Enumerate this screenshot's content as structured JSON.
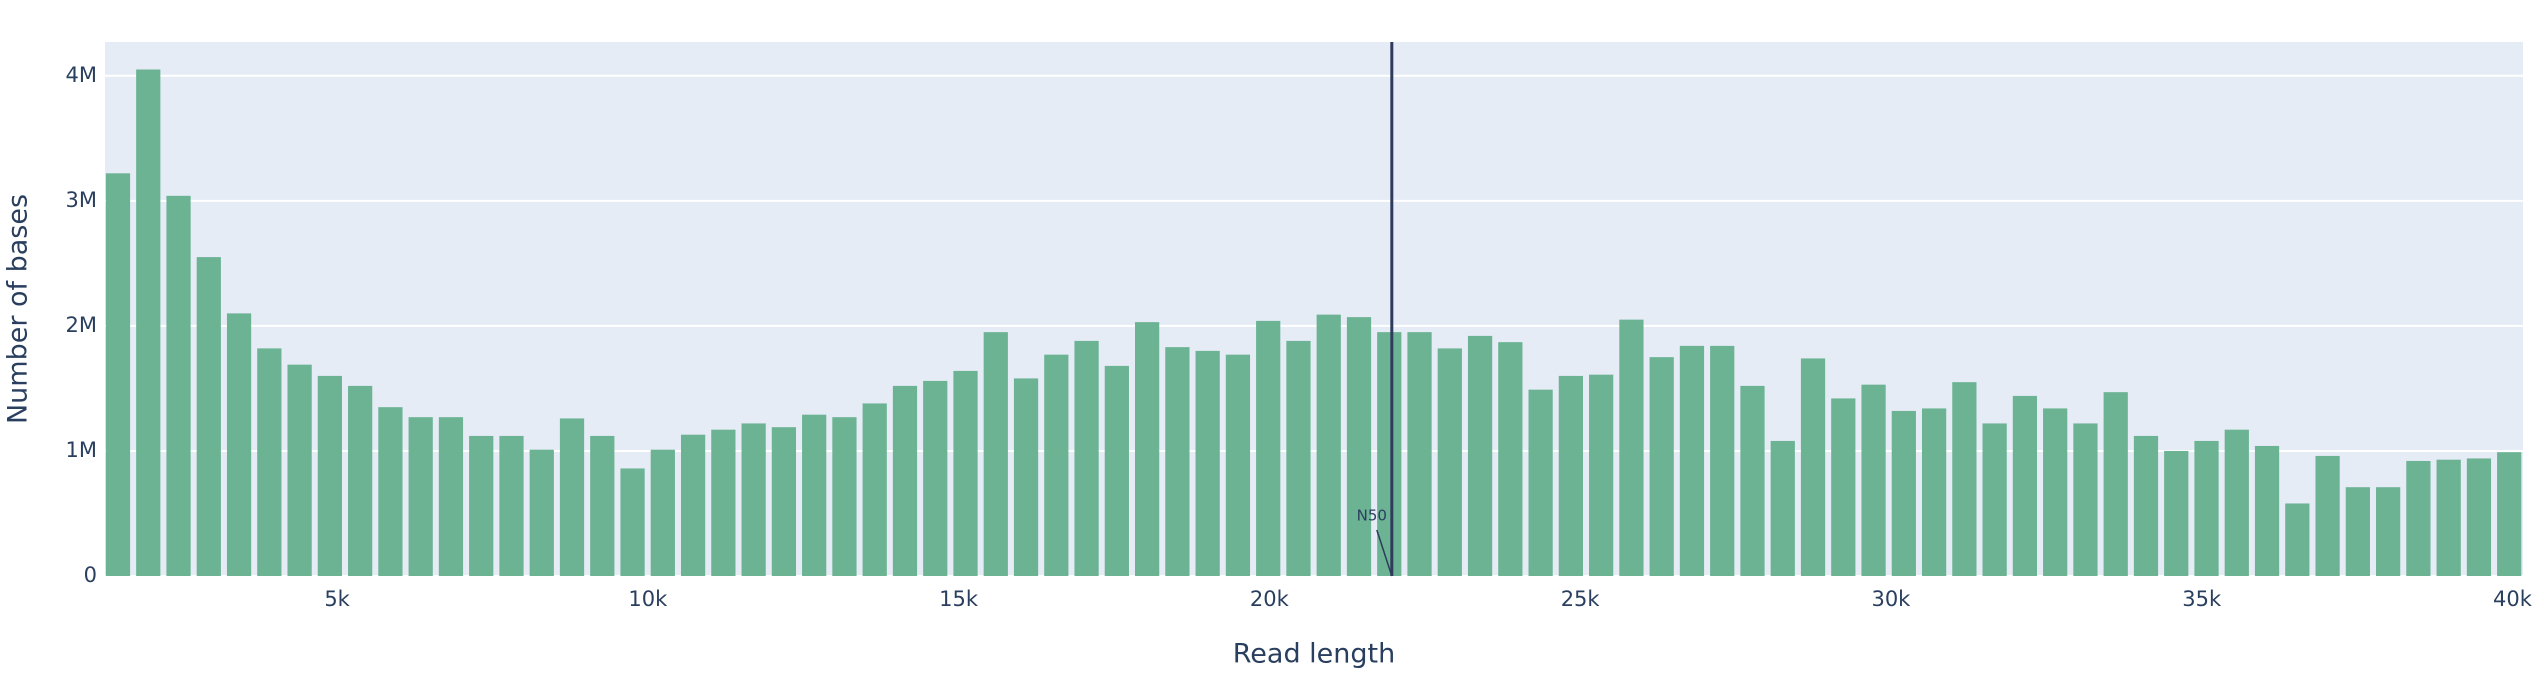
{
  "chart_data": {
    "type": "bar",
    "x_label": "Read length",
    "y_label": "Number of bases",
    "color": "#6cb394",
    "grid": true,
    "x": [
      1475,
      1962,
      2449,
      2936,
      3423,
      3910,
      4397,
      4884,
      5371,
      5858,
      6345,
      6832,
      7319,
      7806,
      8293,
      8780,
      9267,
      9754,
      10241,
      10728,
      11215,
      11702,
      12189,
      12676,
      13163,
      13650,
      14137,
      14624,
      15111,
      15598,
      16085,
      16572,
      17059,
      17546,
      18033,
      18520,
      19007,
      19494,
      19981,
      20468,
      20955,
      21442,
      21929,
      22416,
      22903,
      23390,
      23877,
      24364,
      24851,
      25338,
      25825,
      26312,
      26799,
      27286,
      27773,
      28260,
      28747,
      29234,
      29721,
      30208,
      30695,
      31182,
      31669,
      32156,
      32643,
      33130,
      33617,
      34104,
      34591,
      35078,
      35565,
      36052,
      36539,
      37026,
      37513,
      38000,
      38487,
      38974,
      39461,
      39948
    ],
    "values": [
      3220000,
      4050000,
      3040000,
      2550000,
      2100000,
      1820000,
      1690000,
      1600000,
      1520000,
      1350000,
      1270000,
      1270000,
      1120000,
      1120000,
      1010000,
      1260000,
      1120000,
      860000,
      1010000,
      1130000,
      1170000,
      1220000,
      1190000,
      1290000,
      1270000,
      1380000,
      1520000,
      1560000,
      1640000,
      1950000,
      1580000,
      1770000,
      1880000,
      1680000,
      2030000,
      1830000,
      1800000,
      1770000,
      2040000,
      1880000,
      2090000,
      2070000,
      1950000,
      1950000,
      1820000,
      1920000,
      1870000,
      1490000,
      1600000,
      1610000,
      2050000,
      1750000,
      1840000,
      1840000,
      1520000,
      1080000,
      1740000,
      1420000,
      1530000,
      1320000,
      1340000,
      1550000,
      1220000,
      1440000,
      1340000,
      1220000,
      1470000,
      1120000,
      1000000,
      1080000,
      1170000,
      1040000,
      580000,
      960000,
      710000,
      710000,
      920000,
      930000,
      940000,
      990000
    ],
    "bar_width": 390,
    "xlim": [
      1266,
      40170
    ],
    "ylim": [
      0,
      4270000
    ],
    "xticks": [
      {
        "value": 5000,
        "label": "5k"
      },
      {
        "value": 10000,
        "label": "10k"
      },
      {
        "value": 15000,
        "label": "15k"
      },
      {
        "value": 20000,
        "label": "20k"
      },
      {
        "value": 25000,
        "label": "25k"
      },
      {
        "value": 30000,
        "label": "30k"
      },
      {
        "value": 35000,
        "label": "35k"
      },
      {
        "value": 40000,
        "label": "40k"
      }
    ],
    "yticks": [
      0,
      {
        "value": 1000000,
        "label": "1M"
      },
      {
        "value": 2000000,
        "label": "2M"
      },
      {
        "value": 3000000,
        "label": "3M"
      },
      {
        "value": 4000000,
        "label": "4M"
      }
    ],
    "vline": {
      "x": 21970,
      "color": "#2f3b5c",
      "annotation": "N50"
    }
  }
}
